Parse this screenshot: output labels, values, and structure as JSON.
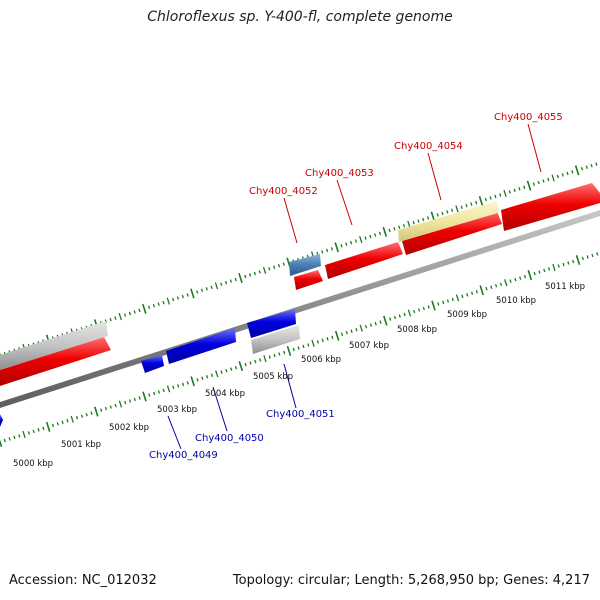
{
  "title": "Chloroflexus sp. Y-400-fl, complete genome",
  "footer": {
    "accession": "Accession: NC_012032",
    "summary": "Topology: circular; Length: 5,268,950 bp; Genes: 4,217"
  },
  "colors": {
    "forward_gene": "#ee0000",
    "reverse_gene": "#0000dd",
    "rna_gene": "#b0b0b0",
    "misc_feature": "#f0e6a0",
    "other_feature": "#4a7db5",
    "backbone": "#808080",
    "tick": "#1e7a1e",
    "forward_label": "#cc0000",
    "reverse_label": "#0000aa"
  },
  "scale_labels": [
    "5000 kbp",
    "5001 kbp",
    "5002 kbp",
    "5003 kbp",
    "5004 kbp",
    "5005 kbp",
    "5006 kbp",
    "5007 kbp",
    "5008 kbp",
    "5009 kbp",
    "5010 kbp",
    "5011 kbp"
  ],
  "forward_labels": [
    "Chy400_4052",
    "Chy400_4053",
    "Chy400_4054",
    "Chy400_4055"
  ],
  "reverse_labels": [
    "Chy400_4049",
    "Chy400_4050",
    "Chy400_4051"
  ]
}
